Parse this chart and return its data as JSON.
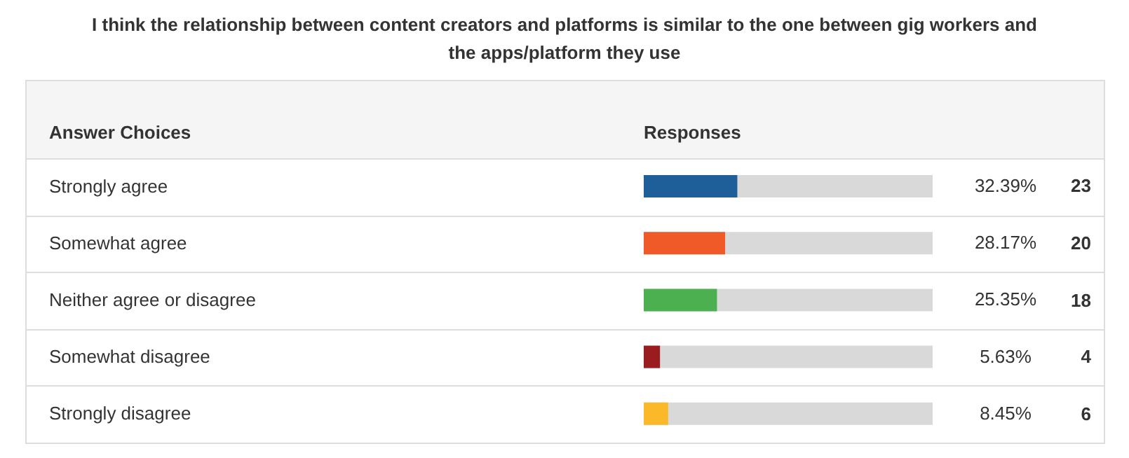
{
  "chart_data": {
    "type": "bar",
    "orientation": "horizontal",
    "title": "I think the relationship between content creators and platforms is similar to the one between gig workers and the apps/platform they use",
    "ylabel": "Answer Choices",
    "xlabel": "Responses",
    "categories": [
      "Strongly agree",
      "Somewhat agree",
      "Neither agree or disagree",
      "Somewhat disagree",
      "Strongly disagree"
    ],
    "values": [
      32.39,
      28.17,
      25.35,
      5.63,
      8.45
    ],
    "colors": [
      "#1f5f99",
      "#f05a28",
      "#4caf50",
      "#9b1c1f",
      "#fbb829"
    ],
    "value_labels": [
      "32.39%",
      "28.17%",
      "25.35%",
      "5.63%",
      "8.45%"
    ],
    "xlim": [
      0,
      100
    ],
    "tick_labels": "y",
    "annotations": [
      "23",
      "20",
      "18",
      "4",
      "6"
    ]
  }
}
